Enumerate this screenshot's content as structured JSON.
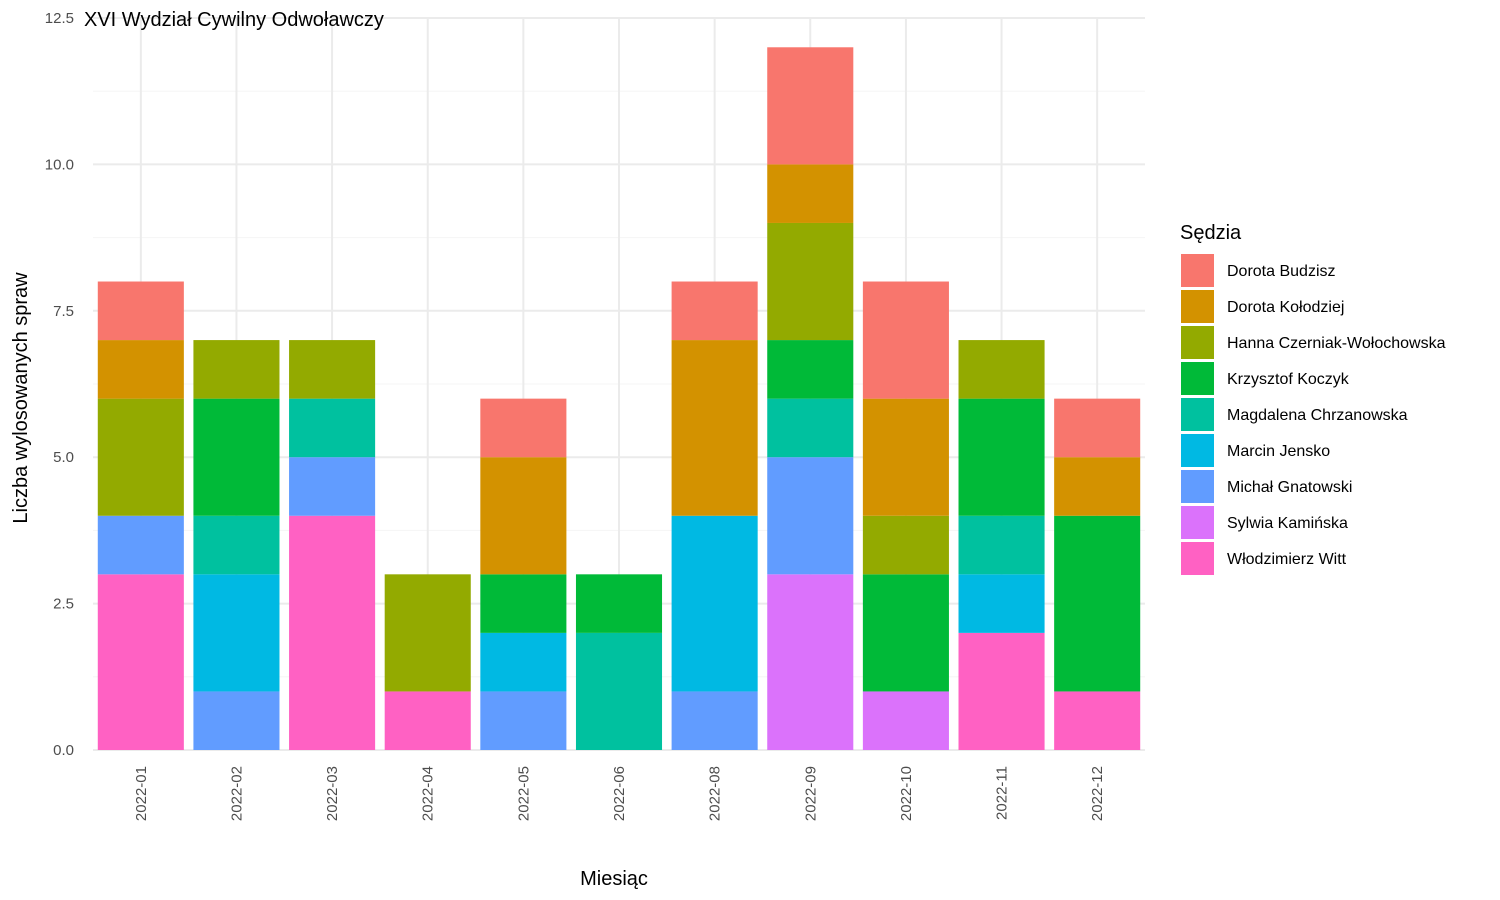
{
  "chart_data": {
    "type": "bar",
    "stacked": true,
    "title": "XVI Wydział Cywilny Odwoławczy",
    "xlabel": "Miesiąc",
    "ylabel": "Liczba wylosowanych spraw",
    "ylim": [
      0,
      12.5
    ],
    "yticks": [
      0,
      2.5,
      5,
      7.5,
      10,
      12.5
    ],
    "ytick_labels": [
      "0.0",
      "2.5",
      "5.0",
      "7.5",
      "10.0",
      "12.5"
    ],
    "grid": true,
    "legend_title": "Sędzia",
    "legend_position": "right",
    "categories": [
      "2022-01",
      "2022-02",
      "2022-03",
      "2022-04",
      "2022-05",
      "2022-06",
      "2022-08",
      "2022-09",
      "2022-10",
      "2022-11",
      "2022-12"
    ],
    "series": [
      {
        "name": "Dorota Budzisz",
        "color": "#F8766D",
        "values": [
          1,
          0,
          0,
          0,
          1,
          0,
          1,
          2,
          2,
          0,
          1
        ]
      },
      {
        "name": "Dorota Kołodziej",
        "color": "#D39200",
        "values": [
          1,
          0,
          0,
          0,
          2,
          0,
          3,
          1,
          2,
          0,
          1
        ]
      },
      {
        "name": "Hanna Czerniak-Wołochowska",
        "color": "#93AA00",
        "values": [
          2,
          1,
          1,
          2,
          0,
          0,
          0,
          2,
          1,
          1,
          0
        ]
      },
      {
        "name": "Krzysztof Koczyk",
        "color": "#00BA38",
        "values": [
          0,
          2,
          0,
          0,
          1,
          1,
          0,
          1,
          2,
          2,
          3
        ]
      },
      {
        "name": "Magdalena Chrzanowska",
        "color": "#00C19F",
        "values": [
          0,
          1,
          1,
          0,
          0,
          2,
          0,
          1,
          0,
          1,
          0
        ]
      },
      {
        "name": "Marcin Jensko",
        "color": "#00B9E3",
        "values": [
          0,
          2,
          0,
          0,
          1,
          0,
          3,
          0,
          0,
          1,
          0
        ]
      },
      {
        "name": "Michał Gnatowski",
        "color": "#619CFF",
        "values": [
          1,
          1,
          1,
          0,
          1,
          0,
          1,
          2,
          0,
          0,
          0
        ]
      },
      {
        "name": "Sylwia Kamińska",
        "color": "#DB72FB",
        "values": [
          0,
          0,
          0,
          0,
          0,
          0,
          0,
          3,
          1,
          0,
          0
        ]
      },
      {
        "name": "Włodzimierz Witt",
        "color": "#FF61C3",
        "values": [
          3,
          0,
          4,
          1,
          0,
          0,
          0,
          0,
          0,
          2,
          1
        ]
      }
    ]
  }
}
